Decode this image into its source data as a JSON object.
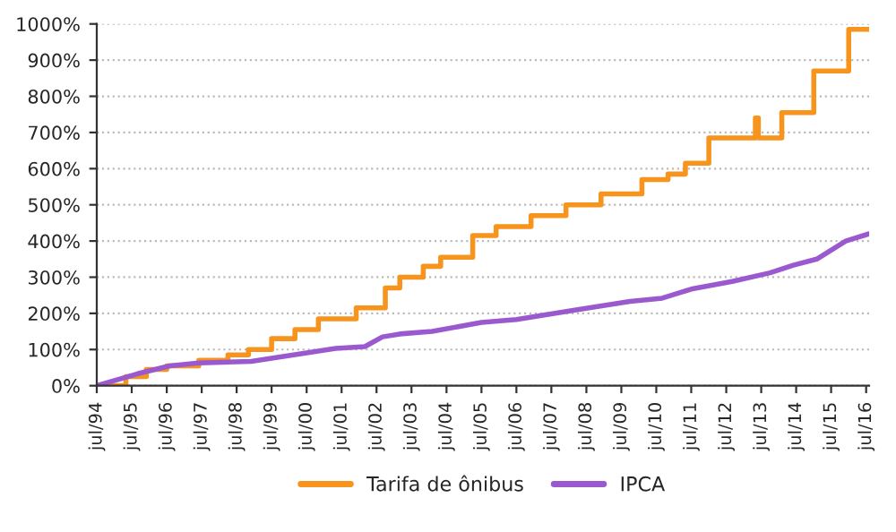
{
  "chart_data": {
    "type": "line",
    "xlim": [
      "1994-07",
      "2016-08"
    ],
    "xticks": [
      {
        "value": "1994-07",
        "label": "jul/94"
      },
      {
        "value": "1995-07",
        "label": "jul/95"
      },
      {
        "value": "1996-07",
        "label": "jul/96"
      },
      {
        "value": "1997-07",
        "label": "jul/97"
      },
      {
        "value": "1998-07",
        "label": "jul/98"
      },
      {
        "value": "1999-07",
        "label": "jul/99"
      },
      {
        "value": "2000-07",
        "label": "jul/00"
      },
      {
        "value": "2001-07",
        "label": "jul/01"
      },
      {
        "value": "2002-07",
        "label": "jul/02"
      },
      {
        "value": "2003-07",
        "label": "jul/03"
      },
      {
        "value": "2004-07",
        "label": "jul/04"
      },
      {
        "value": "2005-07",
        "label": "jul/05"
      },
      {
        "value": "2006-07",
        "label": "jul/06"
      },
      {
        "value": "2007-07",
        "label": "jul/07"
      },
      {
        "value": "2008-07",
        "label": "jul/08"
      },
      {
        "value": "2009-07",
        "label": "jul/09"
      },
      {
        "value": "2010-07",
        "label": "jul/10"
      },
      {
        "value": "2011-07",
        "label": "jul/11"
      },
      {
        "value": "2012-07",
        "label": "jul/12"
      },
      {
        "value": "2013-07",
        "label": "jul/13"
      },
      {
        "value": "2014-07",
        "label": "jul/14"
      },
      {
        "value": "2015-07",
        "label": "jul/15"
      },
      {
        "value": "2016-07",
        "label": "jul/16"
      }
    ],
    "ylim": [
      0,
      1000
    ],
    "yticks": [
      {
        "value": 0,
        "label": "0%"
      },
      {
        "value": 100,
        "label": "100%"
      },
      {
        "value": 200,
        "label": "200%"
      },
      {
        "value": 300,
        "label": "300%"
      },
      {
        "value": 400,
        "label": "400%"
      },
      {
        "value": 500,
        "label": "500%"
      },
      {
        "value": 600,
        "label": "600%"
      },
      {
        "value": 700,
        "label": "700%"
      },
      {
        "value": 800,
        "label": "800%"
      },
      {
        "value": 900,
        "label": "900%"
      },
      {
        "value": 1000,
        "label": "1000%"
      }
    ],
    "grid": "y",
    "legend": "bottom",
    "series": [
      {
        "name": "Tarifa de ônibus",
        "type": "step",
        "color": "#f7941d",
        "x": [
          "1994-07",
          "1995-05",
          "1995-12",
          "1996-07",
          "1997-06",
          "1998-04",
          "1998-11",
          "1999-07",
          "2000-03",
          "2000-11",
          "2001-12",
          "2002-10",
          "2003-03",
          "2003-11",
          "2004-05",
          "2005-04",
          "2005-12",
          "2006-12",
          "2007-12",
          "2008-12",
          "2010-02",
          "2010-11",
          "2011-05",
          "2012-01",
          "2013-05",
          "2013-06",
          "2014-02",
          "2015-01",
          "2016-01",
          "2016-08"
        ],
        "values": [
          0,
          25,
          45,
          55,
          70,
          85,
          100,
          130,
          155,
          185,
          215,
          270,
          300,
          330,
          355,
          415,
          440,
          470,
          500,
          530,
          570,
          585,
          615,
          685,
          740,
          685,
          755,
          870,
          985,
          985
        ]
      },
      {
        "name": "IPCA",
        "color": "#9b59d0",
        "x": [
          "1994-07",
          "1995-09",
          "1996-08",
          "1997-06",
          "1998-12",
          "2000-05",
          "2001-05",
          "2002-03",
          "2002-09",
          "2003-03",
          "2004-02",
          "2005-07",
          "2006-07",
          "2008-02",
          "2009-10",
          "2010-09",
          "2011-07",
          "2012-09",
          "2013-10",
          "2014-06",
          "2015-02",
          "2015-12",
          "2016-08"
        ],
        "values": [
          0,
          33,
          55,
          63,
          67,
          88,
          103,
          108,
          135,
          143,
          150,
          175,
          183,
          208,
          233,
          242,
          267,
          288,
          312,
          333,
          350,
          400,
          420
        ]
      }
    ]
  }
}
